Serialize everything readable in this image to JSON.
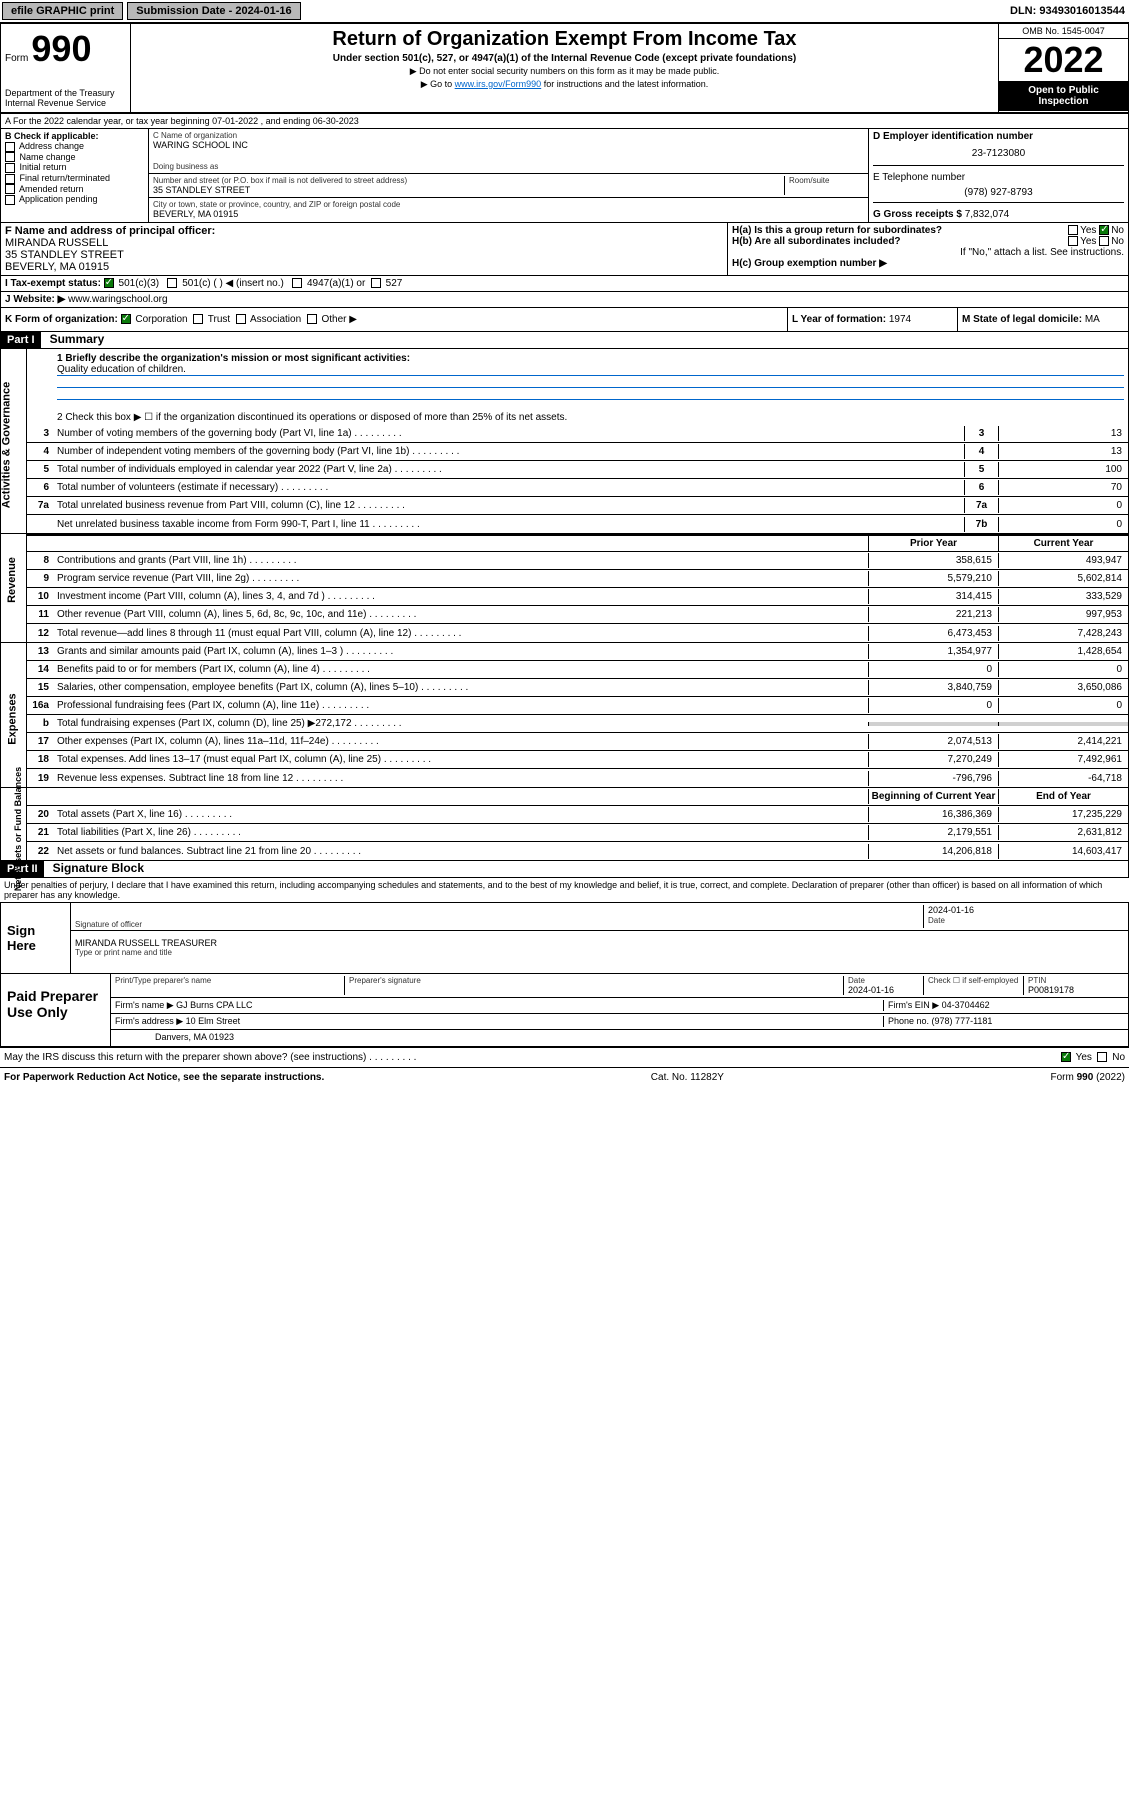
{
  "topbar": {
    "efile": "efile GRAPHIC print",
    "submission_label": "Submission Date - ",
    "submission_date": "2024-01-16",
    "dln_label": "DLN: ",
    "dln": "93493016013544"
  },
  "header": {
    "form_label": "Form",
    "form_number": "990",
    "dept": "Department of the Treasury Internal Revenue Service",
    "title": "Return of Organization Exempt From Income Tax",
    "subtitle": "Under section 501(c), 527, or 4947(a)(1) of the Internal Revenue Code (except private foundations)",
    "note1": "▶ Do not enter social security numbers on this form as it may be made public.",
    "note2_pre": "▶ Go to ",
    "note2_link": "www.irs.gov/Form990",
    "note2_post": " for instructions and the latest information.",
    "omb": "OMB No. 1545-0047",
    "year": "2022",
    "open": "Open to Public Inspection"
  },
  "section_a": "A  For the 2022 calendar year, or tax year beginning 07-01-2022   , and ending 06-30-2023",
  "block_b": {
    "title": "B Check if applicable:",
    "opts": [
      "Address change",
      "Name change",
      "Initial return",
      "Final return/terminated",
      "Amended return",
      "Application pending"
    ]
  },
  "block_c": {
    "name_label": "C Name of organization",
    "name": "WARING SCHOOL INC",
    "dba_label": "Doing business as",
    "dba": "",
    "street_label": "Number and street (or P.O. box if mail is not delivered to street address)",
    "room_label": "Room/suite",
    "street": "35 STANDLEY STREET",
    "city_label": "City or town, state or province, country, and ZIP or foreign postal code",
    "city": "BEVERLY, MA  01915"
  },
  "block_d": {
    "ein_label": "D Employer identification number",
    "ein": "23-7123080",
    "phone_label": "E Telephone number",
    "phone": "(978) 927-8793",
    "gross_label": "G Gross receipts $ ",
    "gross": "7,832,074"
  },
  "block_f": {
    "label": "F  Name and address of principal officer:",
    "name": "MIRANDA RUSSELL",
    "street": "35 STANDLEY STREET",
    "city": "BEVERLY, MA  01915"
  },
  "block_h": {
    "ha_label": "H(a)  Is this a group return for subordinates?",
    "hb_label": "H(b)  Are all subordinates included?",
    "hb_note": "If \"No,\" attach a list. See instructions.",
    "hc_label": "H(c)  Group exemption number ▶"
  },
  "block_i": {
    "label": "I   Tax-exempt status:",
    "o1": "501(c)(3)",
    "o2": "501(c) (  ) ◀ (insert no.)",
    "o3": "4947(a)(1) or",
    "o4": "527"
  },
  "block_j": {
    "label": "J   Website: ▶ ",
    "val": "www.waringschool.org"
  },
  "block_k": {
    "label": "K Form of organization:",
    "opts": [
      "Corporation",
      "Trust",
      "Association",
      "Other ▶"
    ]
  },
  "block_l": {
    "label": "L Year of formation: ",
    "val": "1974"
  },
  "block_m": {
    "label": "M State of legal domicile: ",
    "val": "MA"
  },
  "part1": {
    "tag": "Part I",
    "title": "Summary",
    "q1_label": "1   Briefly describe the organization's mission or most significant activities:",
    "q1_val": "Quality education of children.",
    "q2": "2   Check this box ▶ ☐  if the organization discontinued its operations or disposed of more than 25% of its net assets.",
    "lines_ag": [
      {
        "n": "3",
        "t": "Number of voting members of the governing body (Part VI, line 1a)",
        "b": "3",
        "v": "13"
      },
      {
        "n": "4",
        "t": "Number of independent voting members of the governing body (Part VI, line 1b)",
        "b": "4",
        "v": "13"
      },
      {
        "n": "5",
        "t": "Total number of individuals employed in calendar year 2022 (Part V, line 2a)",
        "b": "5",
        "v": "100"
      },
      {
        "n": "6",
        "t": "Total number of volunteers (estimate if necessary)",
        "b": "6",
        "v": "70"
      },
      {
        "n": "7a",
        "t": "Total unrelated business revenue from Part VIII, column (C), line 12",
        "b": "7a",
        "v": "0"
      },
      {
        "n": "",
        "t": "Net unrelated business taxable income from Form 990-T, Part I, line 11",
        "b": "7b",
        "v": "0"
      }
    ],
    "col_prior": "Prior Year",
    "col_current": "Current Year",
    "col_boy": "Beginning of Current Year",
    "col_eoy": "End of Year",
    "lines_rev": [
      {
        "n": "8",
        "t": "Contributions and grants (Part VIII, line 1h)",
        "p": "358,615",
        "c": "493,947"
      },
      {
        "n": "9",
        "t": "Program service revenue (Part VIII, line 2g)",
        "p": "5,579,210",
        "c": "5,602,814"
      },
      {
        "n": "10",
        "t": "Investment income (Part VIII, column (A), lines 3, 4, and 7d )",
        "p": "314,415",
        "c": "333,529"
      },
      {
        "n": "11",
        "t": "Other revenue (Part VIII, column (A), lines 5, 6d, 8c, 9c, 10c, and 11e)",
        "p": "221,213",
        "c": "997,953"
      },
      {
        "n": "12",
        "t": "Total revenue—add lines 8 through 11 (must equal Part VIII, column (A), line 12)",
        "p": "6,473,453",
        "c": "7,428,243"
      }
    ],
    "lines_exp": [
      {
        "n": "13",
        "t": "Grants and similar amounts paid (Part IX, column (A), lines 1–3 )",
        "p": "1,354,977",
        "c": "1,428,654"
      },
      {
        "n": "14",
        "t": "Benefits paid to or for members (Part IX, column (A), line 4)",
        "p": "0",
        "c": "0"
      },
      {
        "n": "15",
        "t": "Salaries, other compensation, employee benefits (Part IX, column (A), lines 5–10)",
        "p": "3,840,759",
        "c": "3,650,086"
      },
      {
        "n": "16a",
        "t": "Professional fundraising fees (Part IX, column (A), line 11e)",
        "p": "0",
        "c": "0"
      },
      {
        "n": "b",
        "t": "Total fundraising expenses (Part IX, column (D), line 25) ▶272,172",
        "p": "",
        "c": "",
        "shaded": true
      },
      {
        "n": "17",
        "t": "Other expenses (Part IX, column (A), lines 11a–11d, 11f–24e)",
        "p": "2,074,513",
        "c": "2,414,221"
      },
      {
        "n": "18",
        "t": "Total expenses. Add lines 13–17 (must equal Part IX, column (A), line 25)",
        "p": "7,270,249",
        "c": "7,492,961"
      },
      {
        "n": "19",
        "t": "Revenue less expenses. Subtract line 18 from line 12",
        "p": "-796,796",
        "c": "-64,718"
      }
    ],
    "lines_net": [
      {
        "n": "20",
        "t": "Total assets (Part X, line 16)",
        "p": "16,386,369",
        "c": "17,235,229"
      },
      {
        "n": "21",
        "t": "Total liabilities (Part X, line 26)",
        "p": "2,179,551",
        "c": "2,631,812"
      },
      {
        "n": "22",
        "t": "Net assets or fund balances. Subtract line 21 from line 20",
        "p": "14,206,818",
        "c": "14,603,417"
      }
    ],
    "vtabs": {
      "ag": "Activities & Governance",
      "rev": "Revenue",
      "exp": "Expenses",
      "net": "Net Assets or Fund Balances"
    }
  },
  "part2": {
    "tag": "Part II",
    "title": "Signature Block",
    "decl": "Under penalties of perjury, I declare that I have examined this return, including accompanying schedules and statements, and to the best of my knowledge and belief, it is true, correct, and complete. Declaration of preparer (other than officer) is based on all information of which preparer has any knowledge.",
    "sign_here": "Sign Here",
    "sig_officer_lbl": "Signature of officer",
    "sig_date": "2024-01-16",
    "date_lbl": "Date",
    "sig_name": "MIRANDA RUSSELL  TREASURER",
    "sig_name_lbl": "Type or print name and title",
    "paid": "Paid Preparer Use Only",
    "prep_name_lbl": "Print/Type preparer's name",
    "prep_sig_lbl": "Preparer's signature",
    "prep_date_lbl": "Date",
    "prep_date": "2024-01-16",
    "prep_check_lbl": "Check ☐ if self-employed",
    "ptin_lbl": "PTIN",
    "ptin": "P00819178",
    "firm_lbl": "Firm's name    ▶ ",
    "firm": "GJ Burns CPA LLC",
    "firm_ein_lbl": "Firm's EIN ▶ ",
    "firm_ein": "04-3704462",
    "firm_addr_lbl": "Firm's address ▶ ",
    "firm_addr": "10 Elm Street",
    "firm_city": "Danvers, MA  01923",
    "firm_phone_lbl": "Phone no. ",
    "firm_phone": "(978) 777-1181",
    "discuss": "May the IRS discuss this return with the preparer shown above? (see instructions)"
  },
  "footer": {
    "left": "For Paperwork Reduction Act Notice, see the separate instructions.",
    "mid": "Cat. No. 11282Y",
    "right": "Form 990 (2022)"
  }
}
